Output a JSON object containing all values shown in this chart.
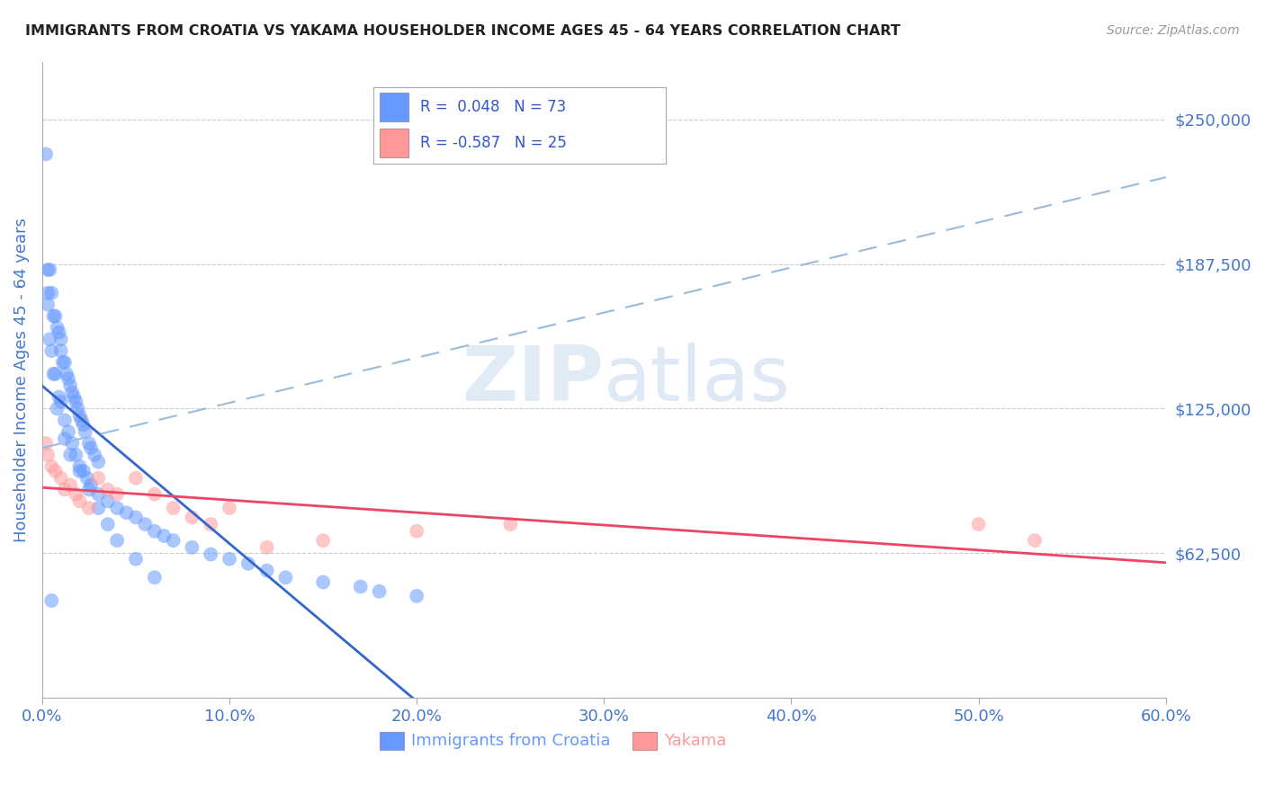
{
  "title": "IMMIGRANTS FROM CROATIA VS YAKAMA HOUSEHOLDER INCOME AGES 45 - 64 YEARS CORRELATION CHART",
  "source": "Source: ZipAtlas.com",
  "ylabel": "Householder Income Ages 45 - 64 years",
  "xlim": [
    0.0,
    0.6
  ],
  "ylim": [
    0,
    275000
  ],
  "yticks": [
    62500,
    125000,
    187500,
    250000
  ],
  "ytick_labels": [
    "$62,500",
    "$125,000",
    "$187,500",
    "$250,000"
  ],
  "xticks": [
    0.0,
    0.1,
    0.2,
    0.3,
    0.4,
    0.5,
    0.6
  ],
  "xtick_labels": [
    "0.0%",
    "10.0%",
    "20.0%",
    "30.0%",
    "40.0%",
    "50.0%",
    "60.0%"
  ],
  "grid_color": "#cccccc",
  "background_color": "#ffffff",
  "watermark_zip": "ZIP",
  "watermark_atlas": "atlas",
  "legend_r1": "R =  0.048",
  "legend_n1": "N = 73",
  "legend_r2": "R = -0.587",
  "legend_n2": "N = 25",
  "legend_label1": "Immigrants from Croatia",
  "legend_label2": "Yakama",
  "blue_color": "#6699ff",
  "pink_color": "#ff9999",
  "trend_blue_color": "#3366cc",
  "trend_pink_color": "#ee4466",
  "dash_blue_color": "#99bbdd",
  "title_color": "#222222",
  "ytick_color": "#4477cc",
  "xtick_color": "#4477cc",
  "blue_scatter_x": [
    0.002,
    0.003,
    0.004,
    0.005,
    0.006,
    0.007,
    0.008,
    0.009,
    0.01,
    0.01,
    0.011,
    0.012,
    0.013,
    0.014,
    0.015,
    0.016,
    0.017,
    0.018,
    0.019,
    0.02,
    0.021,
    0.022,
    0.023,
    0.025,
    0.026,
    0.028,
    0.03,
    0.003,
    0.005,
    0.007,
    0.009,
    0.01,
    0.012,
    0.014,
    0.016,
    0.018,
    0.02,
    0.022,
    0.024,
    0.026,
    0.03,
    0.035,
    0.04,
    0.045,
    0.05,
    0.055,
    0.06,
    0.065,
    0.07,
    0.08,
    0.09,
    0.1,
    0.11,
    0.12,
    0.13,
    0.15,
    0.17,
    0.18,
    0.2,
    0.003,
    0.004,
    0.006,
    0.008,
    0.012,
    0.015,
    0.02,
    0.025,
    0.03,
    0.035,
    0.04,
    0.05,
    0.06,
    0.005
  ],
  "blue_scatter_y": [
    235000,
    185000,
    185000,
    175000,
    165000,
    165000,
    160000,
    158000,
    155000,
    150000,
    145000,
    145000,
    140000,
    138000,
    135000,
    132000,
    130000,
    128000,
    125000,
    122000,
    120000,
    118000,
    115000,
    110000,
    108000,
    105000,
    102000,
    170000,
    150000,
    140000,
    130000,
    128000,
    120000,
    115000,
    110000,
    105000,
    100000,
    98000,
    95000,
    92000,
    88000,
    85000,
    82000,
    80000,
    78000,
    75000,
    72000,
    70000,
    68000,
    65000,
    62000,
    60000,
    58000,
    55000,
    52000,
    50000,
    48000,
    46000,
    44000,
    175000,
    155000,
    140000,
    125000,
    112000,
    105000,
    98000,
    90000,
    82000,
    75000,
    68000,
    60000,
    52000,
    42000
  ],
  "pink_scatter_x": [
    0.002,
    0.003,
    0.005,
    0.007,
    0.01,
    0.012,
    0.015,
    0.018,
    0.02,
    0.025,
    0.03,
    0.035,
    0.04,
    0.05,
    0.06,
    0.07,
    0.08,
    0.09,
    0.1,
    0.12,
    0.15,
    0.2,
    0.25,
    0.5,
    0.53
  ],
  "pink_scatter_y": [
    110000,
    105000,
    100000,
    98000,
    95000,
    90000,
    92000,
    88000,
    85000,
    82000,
    95000,
    90000,
    88000,
    95000,
    88000,
    82000,
    78000,
    75000,
    82000,
    65000,
    68000,
    72000,
    75000,
    75000,
    68000
  ],
  "dash_line_x": [
    0.0,
    0.6
  ],
  "dash_line_y": [
    108000,
    225000
  ]
}
